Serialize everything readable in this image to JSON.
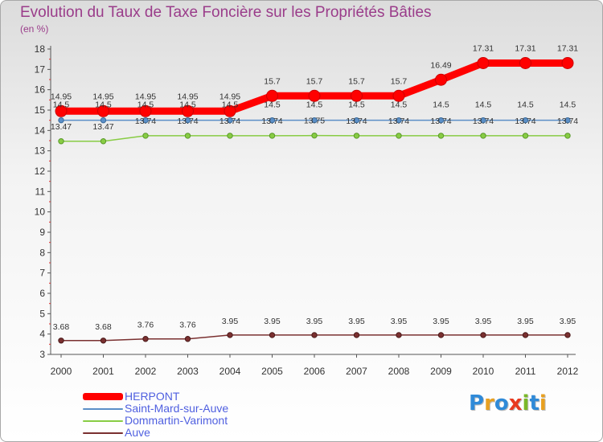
{
  "title": "Evolution du Taux de Taxe Foncière sur les Propriétés Bâties",
  "unit_label": "(en %)",
  "logo": {
    "text": "Proxiti",
    "letter_colors": [
      "#2f8ad8",
      "#e8a020",
      "#2f8ad8",
      "#e83a20",
      "#7ab828",
      "#2f8ad8",
      "#e8a020"
    ]
  },
  "chart_data": {
    "type": "line",
    "title": "Evolution du Taux de Taxe Foncière sur les Propriétés Bâties",
    "ylabel": "(en %)",
    "xlabel": "",
    "ylim": [
      3,
      18
    ],
    "yticks": [
      3,
      4,
      5,
      6,
      7,
      8,
      9,
      10,
      11,
      12,
      13,
      14,
      15,
      16,
      17,
      18
    ],
    "categories": [
      "2000",
      "2001",
      "2002",
      "2003",
      "2004",
      "2005",
      "2006",
      "2007",
      "2008",
      "2009",
      "2010",
      "2011",
      "2012"
    ],
    "series": [
      {
        "name": "HERPONT",
        "color": "#ff0000",
        "values": [
          14.95,
          14.95,
          14.95,
          14.95,
          14.95,
          15.7,
          15.7,
          15.7,
          15.7,
          16.49,
          17.31,
          17.31,
          17.31
        ],
        "labels": [
          "14.95",
          "14.95",
          "14.95",
          "14.95",
          "14.95",
          "15.7",
          "15.7",
          "15.7",
          "15.7",
          "16.49",
          "17.31",
          "17.31",
          "17.31"
        ]
      },
      {
        "name": "Saint-Mard-sur-Auve",
        "color": "#5b8fc7",
        "values": [
          14.5,
          14.5,
          14.5,
          14.5,
          14.5,
          14.5,
          14.5,
          14.5,
          14.5,
          14.5,
          14.5,
          14.5,
          14.5
        ],
        "labels": [
          "14.5",
          "14.5",
          "14.5",
          "14.5",
          "14.5",
          "14.5",
          "14.5",
          "14.5",
          "14.5",
          "14.5",
          "14.5",
          "14.5",
          "14.5"
        ]
      },
      {
        "name": "Dommartin-Varimont",
        "color": "#88cc44",
        "values": [
          13.47,
          13.47,
          13.74,
          13.74,
          13.74,
          13.74,
          13.75,
          13.74,
          13.74,
          13.74,
          13.74,
          13.74,
          13.74
        ],
        "labels": [
          "13.47",
          "13.47",
          "13.74",
          "13.74",
          "13.74",
          "13.74",
          "13.75",
          "13.74",
          "13.74",
          "13.74",
          "13.74",
          "13.74",
          "13.74"
        ]
      },
      {
        "name": "Auve",
        "color": "#7a3030",
        "values": [
          3.68,
          3.68,
          3.76,
          3.76,
          3.95,
          3.95,
          3.95,
          3.95,
          3.95,
          3.95,
          3.95,
          3.95,
          3.95
        ],
        "labels": [
          "3.68",
          "3.68",
          "3.76",
          "3.76",
          "3.95",
          "3.95",
          "3.95",
          "3.95",
          "3.95",
          "3.95",
          "3.95",
          "3.95",
          "3.95"
        ]
      }
    ],
    "legend_position": "bottom-left"
  }
}
